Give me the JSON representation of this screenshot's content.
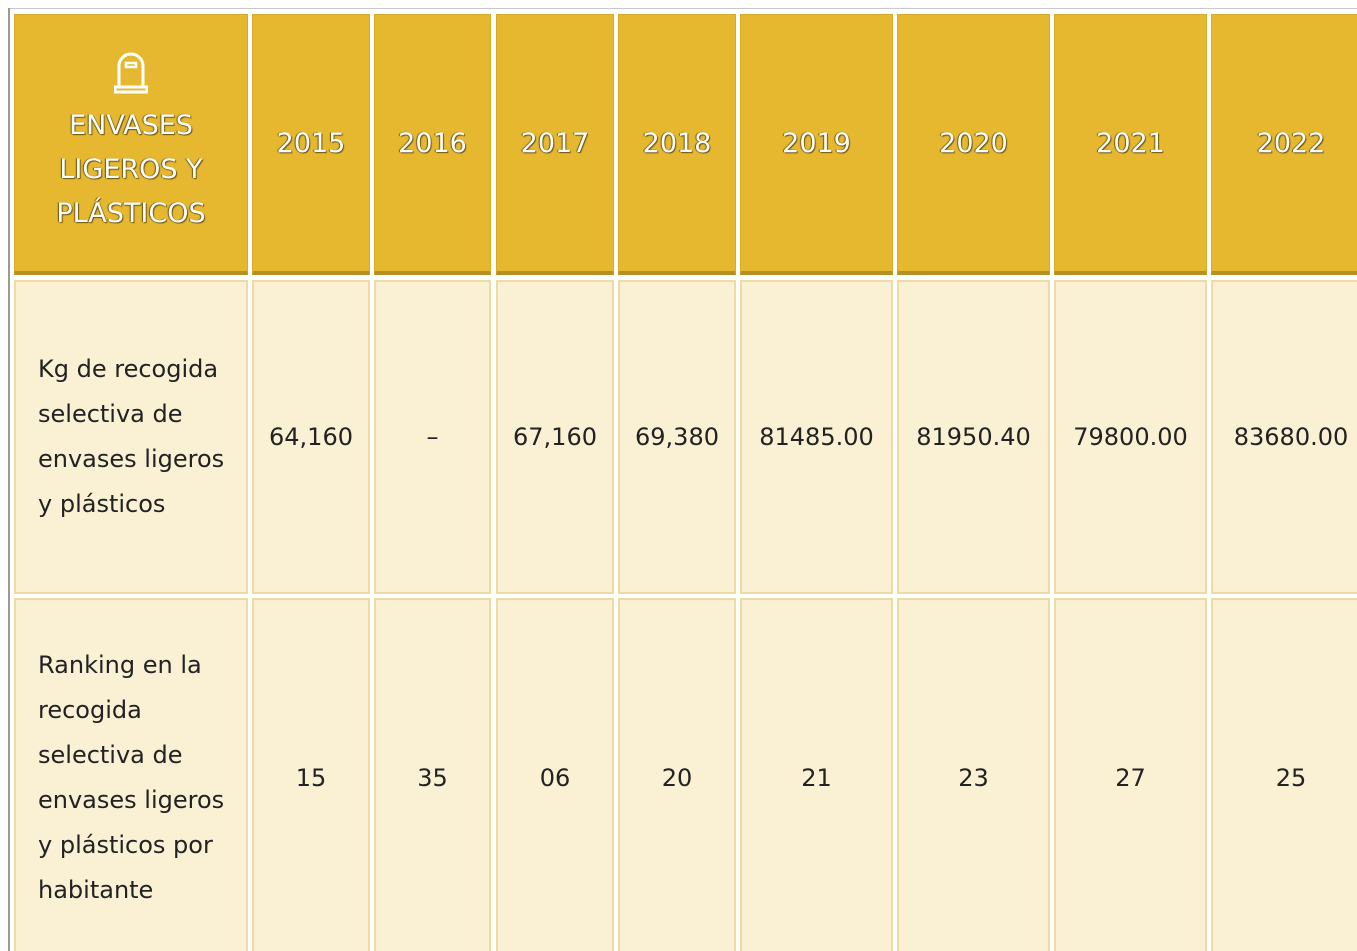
{
  "header": {
    "title": "ENVASES LIGEROS Y PLÁSTICOS",
    "years": [
      "2015",
      "2016",
      "2017",
      "2018",
      "2019",
      "2020",
      "2021",
      "2022"
    ]
  },
  "rows": [
    {
      "label": "Kg de recogida selectiva de envases ligeros y plásticos",
      "values": [
        "64,160",
        "–",
        "67,160",
        "69,380",
        "81485.00",
        "81950.40",
        "79800.00",
        "83680.00"
      ]
    },
    {
      "label": "Ranking en la recogida selectiva de envases ligeros y plásticos por habitante",
      "values": [
        "15",
        "35",
        "06",
        "20",
        "21",
        "23",
        "27",
        "25"
      ]
    }
  ]
}
